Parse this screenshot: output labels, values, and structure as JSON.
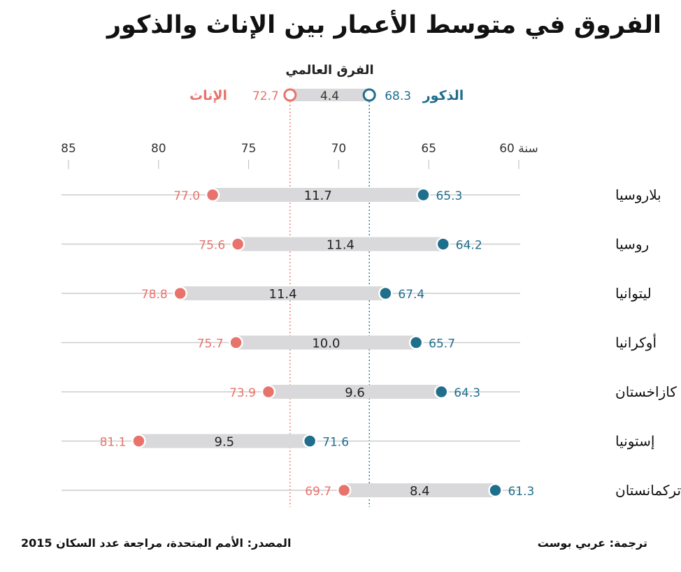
{
  "title": "الفروق في متوسط الأعمار بين الإناث والذكور",
  "source": "المصدر: الأمم المتحدة، مراجعة عدد السكان 2015",
  "credit": "ترجمة: عربي بوست",
  "colors": {
    "male": "#1f6e8c",
    "female": "#e8736c",
    "bar": "#d9d9db",
    "axis": "#cccccc"
  },
  "chart_data": {
    "type": "dumbbell",
    "xlim": [
      85,
      60
    ],
    "ticks": [
      {
        "value": 85,
        "label": "85"
      },
      {
        "value": 80,
        "label": "80"
      },
      {
        "value": 75,
        "label": "75"
      },
      {
        "value": 70,
        "label": "70"
      },
      {
        "value": 65,
        "label": "65"
      },
      {
        "value": 60,
        "label": "60 سنة"
      }
    ],
    "world": {
      "label": "الفرق العالمي",
      "male_label": "الذكور",
      "female_label": "الإناث",
      "male": 68.3,
      "female": 72.7,
      "gap": 4.4
    },
    "rows": [
      {
        "country": "بلاروسيا",
        "male": 65.3,
        "female": 77.0,
        "gap": 11.7
      },
      {
        "country": "روسيا",
        "male": 64.2,
        "female": 75.6,
        "gap": 11.4
      },
      {
        "country": "ليتوانيا",
        "male": 67.4,
        "female": 78.8,
        "gap": 11.4
      },
      {
        "country": "أوكرانيا",
        "male": 65.7,
        "female": 75.7,
        "gap": 10.0
      },
      {
        "country": "كازاخستان",
        "male": 64.3,
        "female": 73.9,
        "gap": 9.6
      },
      {
        "country": "إستونيا",
        "male": 71.6,
        "female": 81.1,
        "gap": 9.5
      },
      {
        "country": "تركمانستان",
        "male": 61.3,
        "female": 69.7,
        "gap": 8.4
      }
    ]
  }
}
